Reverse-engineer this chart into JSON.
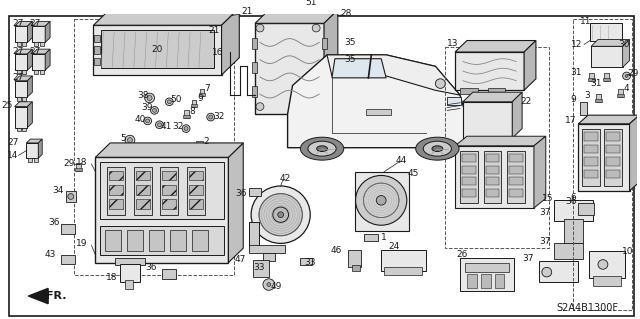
{
  "bg": "#ffffff",
  "fg": "#1a1a1a",
  "diagram_code": "S2A4B1300F",
  "gray_light": "#e8e8e8",
  "gray_mid": "#cccccc",
  "gray_dark": "#999999",
  "hatch_color": "#aaaaaa",
  "border_lw": 1.2,
  "part_lw": 0.8,
  "thin_lw": 0.5,
  "label_fs": 6.5,
  "note_fr": "FR."
}
